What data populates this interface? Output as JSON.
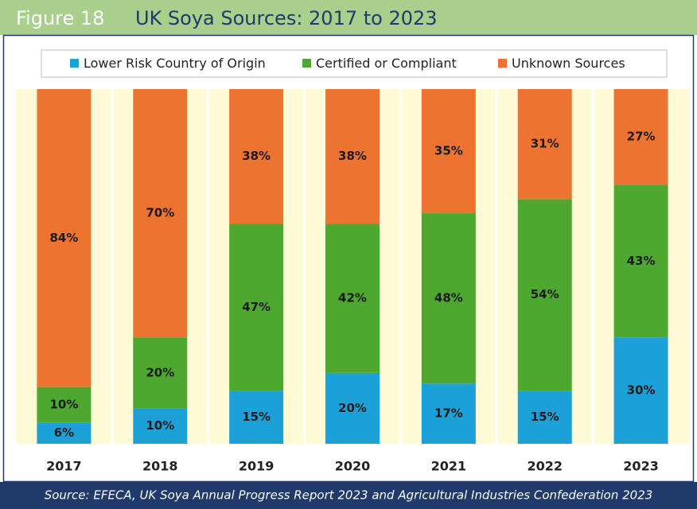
{
  "chart_data": {
    "type": "stacked_bar",
    "figure_label": "Figure 18",
    "title": "UK Soya Sources: 2017 to 2023",
    "source": "Source: EFECA, UK Soya Annual Progress Report 2023 and Agricultural Industries Confederation 2023",
    "categories": [
      "2017",
      "2018",
      "2019",
      "2020",
      "2021",
      "2022",
      "2023"
    ],
    "series": [
      {
        "name": "Lower Risk Country of Origin",
        "color": "#1ba1d8",
        "values": [
          6,
          10,
          15,
          20,
          17,
          15,
          30
        ],
        "value_labels": [
          "6%",
          "10%",
          "15%",
          "20%",
          "17%",
          "15%",
          "30%"
        ]
      },
      {
        "name": "Certified or Compliant",
        "color": "#4ea72e",
        "values": [
          10,
          20,
          47,
          42,
          48,
          54,
          43
        ],
        "value_labels": [
          "10%",
          "20%",
          "47%",
          "42%",
          "48%",
          "54%",
          "43%"
        ]
      },
      {
        "name": "Unknown Sources",
        "color": "#ec7330",
        "values": [
          84,
          70,
          38,
          38,
          35,
          31,
          27
        ],
        "value_labels": [
          "84%",
          "70%",
          "38%",
          "38%",
          "35%",
          "31%",
          "27%"
        ]
      }
    ],
    "ylim": [
      0,
      100
    ],
    "legend": "top"
  }
}
